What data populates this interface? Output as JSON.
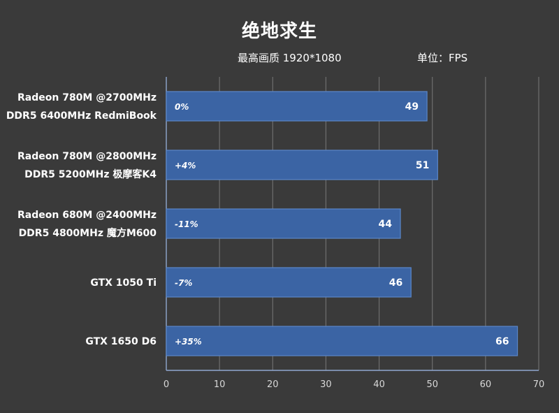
{
  "colors": {
    "background": "#3a3a3a",
    "bar": "#3b64a4",
    "bar_edge": "#5a86c8",
    "grid": "#6e6e6e",
    "axis": "#8fa8d0"
  },
  "chart_data": {
    "type": "bar",
    "orientation": "horizontal",
    "title": "绝地求生",
    "subtitle_left": "最高画质 1920*1080",
    "subtitle_right": "单位：FPS",
    "categories": [
      [
        "Radeon 780M @2700MHz",
        "DDR5 6400MHz RedmiBook"
      ],
      [
        "Radeon 780M @2800MHz",
        "DDR5 5200MHz 极摩客K4"
      ],
      [
        "Radeon 680M @2400MHz",
        "DDR5 4800MHz 魔方M600"
      ],
      [
        "GTX 1050 Ti"
      ],
      [
        "GTX 1650 D6"
      ]
    ],
    "values": [
      49,
      51,
      44,
      46,
      66
    ],
    "percent_labels": [
      "0%",
      "+4%",
      "-11%",
      "-7%",
      "+35%"
    ],
    "xlim": [
      0,
      70
    ],
    "xticks": [
      0,
      10,
      20,
      30,
      40,
      50,
      60,
      70
    ],
    "grid": true,
    "xlabel": "",
    "ylabel": ""
  }
}
